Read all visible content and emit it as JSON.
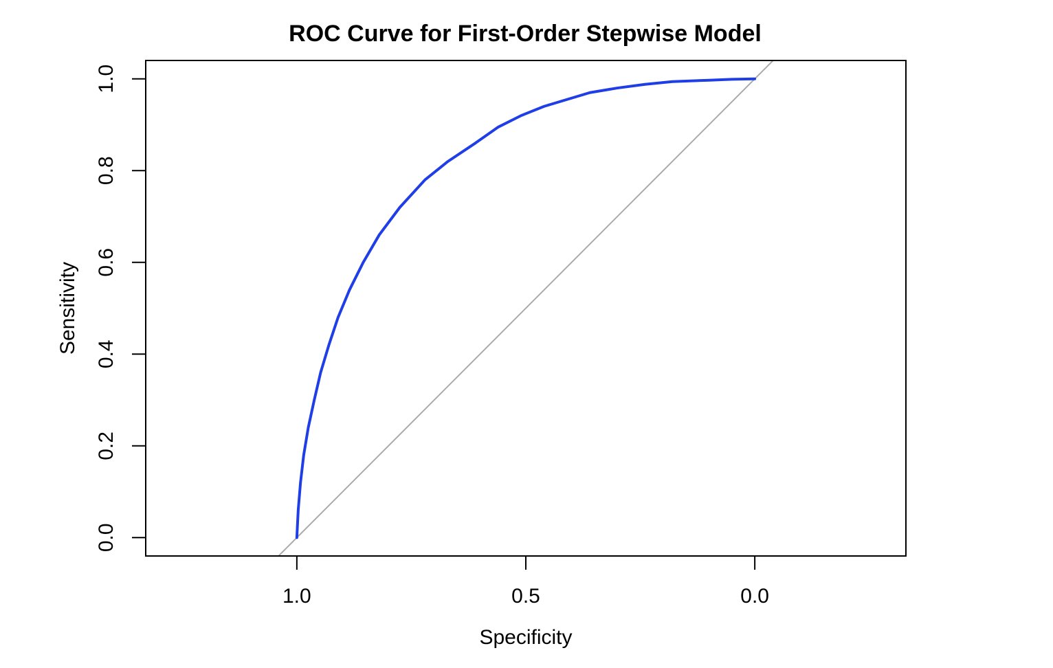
{
  "chart_data": {
    "type": "line",
    "title": "ROC Curve for First-Order Stepwise Model",
    "xlabel": "Specificity",
    "ylabel": "Sensitivity",
    "x_reversed": true,
    "xlim": [
      1.33,
      -0.33
    ],
    "ylim": [
      -0.04,
      1.04
    ],
    "xticks": [
      {
        "value": 1.0,
        "label": "1.0"
      },
      {
        "value": 0.5,
        "label": "0.5"
      },
      {
        "value": 0.0,
        "label": "0.0"
      }
    ],
    "yticks": [
      {
        "value": 0.0,
        "label": "0.0"
      },
      {
        "value": 0.2,
        "label": "0.2"
      },
      {
        "value": 0.4,
        "label": "0.4"
      },
      {
        "value": 0.6,
        "label": "0.6"
      },
      {
        "value": 0.8,
        "label": "0.8"
      },
      {
        "value": 1.0,
        "label": "1.0"
      }
    ],
    "grid": false,
    "legend": "none",
    "reference_line": {
      "description": "diagonal specificity = 1 - sensitivity",
      "color": "#aaaaaa"
    },
    "series": [
      {
        "color": "#1f3ee6",
        "x": [
          1.0,
          0.997,
          0.992,
          0.985,
          0.975,
          0.962,
          0.948,
          0.93,
          0.91,
          0.885,
          0.855,
          0.82,
          0.775,
          0.72,
          0.67,
          0.61,
          0.56,
          0.51,
          0.46,
          0.41,
          0.36,
          0.3,
          0.24,
          0.18,
          0.1,
          0.05,
          0.0
        ],
        "y": [
          0.0,
          0.06,
          0.12,
          0.18,
          0.24,
          0.3,
          0.36,
          0.42,
          0.48,
          0.54,
          0.6,
          0.66,
          0.72,
          0.78,
          0.82,
          0.86,
          0.895,
          0.92,
          0.94,
          0.955,
          0.97,
          0.98,
          0.988,
          0.994,
          0.997,
          0.999,
          1.0
        ]
      }
    ]
  }
}
